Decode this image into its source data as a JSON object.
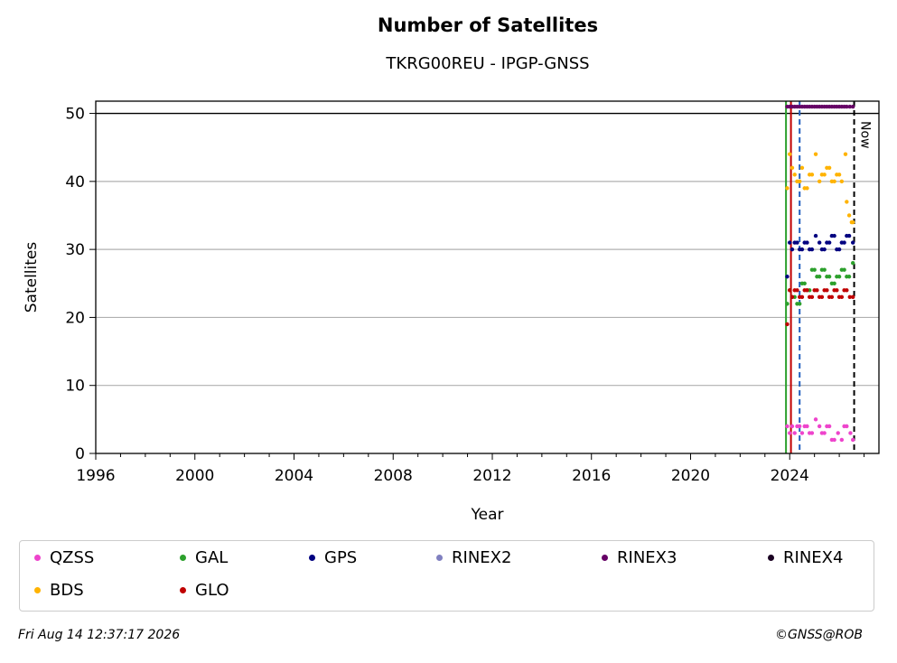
{
  "chart_data": {
    "type": "scatter",
    "title": "Number of Satellites",
    "subtitle": "TKRG00REU - IPGP-GNSS",
    "xlabel": "Year",
    "ylabel": "Satellites",
    "xlim": [
      1996,
      2027.6
    ],
    "ylim": [
      0,
      51.8
    ],
    "x_ticks": [
      1996,
      2000,
      2004,
      2008,
      2012,
      2016,
      2020,
      2024
    ],
    "y_ticks": [
      0,
      10,
      20,
      30,
      40,
      50
    ],
    "grid": "horizontal",
    "reference_lines": [
      {
        "x": 2023.85,
        "color": "#2ca02c",
        "style": "solid"
      },
      {
        "x": 2024.05,
        "color": "#c00000",
        "style": "solid"
      },
      {
        "x": 2024.4,
        "color": "#1f5fbf",
        "style": "dashed"
      },
      {
        "x": 2026.6,
        "color": "#000000",
        "style": "dashed",
        "label": "Now"
      }
    ],
    "hline": 50,
    "series": [
      {
        "name": "QZSS",
        "color": "#ee44cc",
        "points": [
          [
            2023.9,
            4
          ],
          [
            2024.0,
            3
          ],
          [
            2024.1,
            4
          ],
          [
            2024.2,
            3
          ],
          [
            2024.4,
            4
          ],
          [
            2024.5,
            3
          ],
          [
            2024.7,
            4
          ],
          [
            2024.9,
            3
          ],
          [
            2025.05,
            5
          ],
          [
            2025.2,
            4
          ],
          [
            2025.4,
            3
          ],
          [
            2025.6,
            4
          ],
          [
            2025.8,
            2
          ],
          [
            2025.95,
            3
          ],
          [
            2026.1,
            2
          ],
          [
            2026.3,
            4
          ],
          [
            2026.45,
            3
          ],
          [
            2026.55,
            2
          ]
        ]
      },
      {
        "name": "GAL",
        "color": "#2ca02c",
        "points": [
          [
            2023.9,
            22
          ],
          [
            2024.0,
            24
          ],
          [
            2024.2,
            23
          ],
          [
            2024.4,
            22
          ],
          [
            2024.6,
            25
          ],
          [
            2024.8,
            24
          ],
          [
            2025.0,
            27
          ],
          [
            2025.2,
            26
          ],
          [
            2025.4,
            27
          ],
          [
            2025.6,
            26
          ],
          [
            2025.8,
            25
          ],
          [
            2026.0,
            26
          ],
          [
            2026.2,
            27
          ],
          [
            2026.4,
            26
          ],
          [
            2026.55,
            28
          ]
        ]
      },
      {
        "name": "GPS",
        "color": "#000080",
        "points": [
          [
            2023.9,
            26
          ],
          [
            2024.0,
            31
          ],
          [
            2024.1,
            30
          ],
          [
            2024.3,
            31
          ],
          [
            2024.5,
            30
          ],
          [
            2024.7,
            31
          ],
          [
            2024.9,
            30
          ],
          [
            2025.05,
            32
          ],
          [
            2025.2,
            31
          ],
          [
            2025.4,
            30
          ],
          [
            2025.6,
            31
          ],
          [
            2025.8,
            32
          ],
          [
            2026.0,
            30
          ],
          [
            2026.2,
            31
          ],
          [
            2026.4,
            32
          ],
          [
            2026.55,
            31
          ]
        ]
      },
      {
        "name": "RINEX2",
        "color": "#8080c0",
        "points": []
      },
      {
        "name": "RINEX3",
        "color": "#660066",
        "points": [
          [
            2023.9,
            51
          ],
          [
            2024.2,
            51
          ],
          [
            2024.5,
            51
          ],
          [
            2024.8,
            51
          ],
          [
            2025.1,
            51
          ],
          [
            2025.4,
            51
          ],
          [
            2025.7,
            51
          ],
          [
            2026.0,
            51
          ],
          [
            2026.3,
            51
          ],
          [
            2026.55,
            51
          ]
        ]
      },
      {
        "name": "RINEX4",
        "color": "#1a0022",
        "points": []
      },
      {
        "name": "BDS",
        "color": "#ffb300",
        "points": [
          [
            2023.9,
            39
          ],
          [
            2024.0,
            44
          ],
          [
            2024.1,
            42
          ],
          [
            2024.2,
            41
          ],
          [
            2024.4,
            40
          ],
          [
            2024.5,
            42
          ],
          [
            2024.7,
            39
          ],
          [
            2024.9,
            41
          ],
          [
            2025.05,
            44
          ],
          [
            2025.2,
            40
          ],
          [
            2025.4,
            41
          ],
          [
            2025.6,
            42
          ],
          [
            2025.8,
            40
          ],
          [
            2026.0,
            41
          ],
          [
            2026.1,
            40
          ],
          [
            2026.25,
            44
          ],
          [
            2026.3,
            37
          ],
          [
            2026.4,
            35
          ],
          [
            2026.5,
            34
          ],
          [
            2026.55,
            34
          ]
        ]
      },
      {
        "name": "GLO",
        "color": "#c00000",
        "points": [
          [
            2023.9,
            19
          ],
          [
            2024.0,
            24
          ],
          [
            2024.1,
            23
          ],
          [
            2024.3,
            24
          ],
          [
            2024.5,
            23
          ],
          [
            2024.7,
            24
          ],
          [
            2024.9,
            23
          ],
          [
            2025.1,
            24
          ],
          [
            2025.3,
            23
          ],
          [
            2025.5,
            24
          ],
          [
            2025.7,
            23
          ],
          [
            2025.9,
            24
          ],
          [
            2026.1,
            23
          ],
          [
            2026.3,
            24
          ],
          [
            2026.55,
            23
          ]
        ]
      }
    ]
  },
  "legend": {
    "items": [
      {
        "label": "QZSS",
        "color": "#ee44cc"
      },
      {
        "label": "GAL",
        "color": "#2ca02c"
      },
      {
        "label": "GPS",
        "color": "#000080"
      },
      {
        "label": "RINEX2",
        "color": "#8080c0"
      },
      {
        "label": "RINEX3",
        "color": "#660066"
      },
      {
        "label": "RINEX4",
        "color": "#1a0022"
      },
      {
        "label": "BDS",
        "color": "#ffb300"
      },
      {
        "label": "GLO",
        "color": "#c00000"
      }
    ]
  },
  "footer": {
    "timestamp": "Fri Aug 14 12:37:17 2026",
    "credit": "©GNSS@ROB"
  }
}
